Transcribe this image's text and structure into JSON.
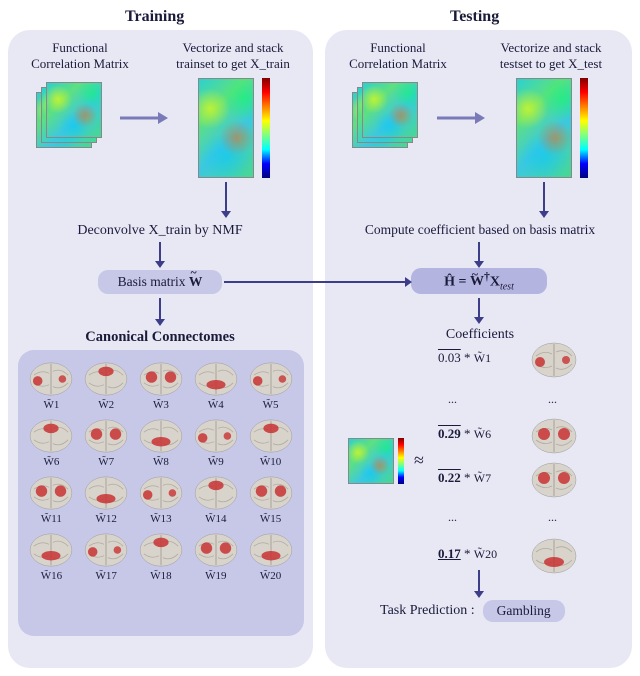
{
  "colors": {
    "panel_bg": "#e8e8f5",
    "bubble_bg": "#c7c7e8",
    "arrow": "#3d3d8a",
    "text": "#1a1a3a"
  },
  "headings": {
    "train": "Training",
    "test": "Testing"
  },
  "labels": {
    "fcm_train": "Functional\nCorrelation Matrix",
    "vec_train": "Vectorize and stack\ntrainset to get X_train",
    "fcm_test": "Functional\nCorrelation Matrix",
    "vec_test": "Vectorize and stack\ntestset to get  X_test",
    "deconv": "Deconvolve X_train by NMF",
    "basis": "Basis matrix W̃",
    "canonical": "Canonical Connectomes",
    "compute": "Compute coefficient based on basis matrix",
    "hhat": "Ĥ = W̃† X_test",
    "coeffs_title": "Coefficients",
    "task_pred": "Task Prediction :",
    "task_value": "Gambling"
  },
  "cc": {
    "rows": 4,
    "cols": 5,
    "labels": [
      "W̃1",
      "W̃2",
      "W̃3",
      "W̃4",
      "W̃5",
      "W̃6",
      "W̃7",
      "W̃8",
      "W̃9",
      "W̃10",
      "W̃11",
      "W̃12",
      "W̃13",
      "W̃14",
      "W̃15",
      "W̃16",
      "W̃17",
      "W̃18",
      "W̃19",
      "W̃20"
    ]
  },
  "coeffs": [
    {
      "value": "0.03",
      "basis": "W̃1",
      "bold": false
    },
    {
      "value": "0.29",
      "basis": "W̃6",
      "bold": true
    },
    {
      "value": "0.22",
      "basis": "W̃7",
      "bold": true
    },
    {
      "value": "0.17",
      "basis": "W̃20",
      "bold": true
    }
  ],
  "jet_stops": [
    "#00007f",
    "#0000ff",
    "#00ffff",
    "#7fff7f",
    "#ffff00",
    "#ff7f00",
    "#ff0000",
    "#7f0000"
  ]
}
